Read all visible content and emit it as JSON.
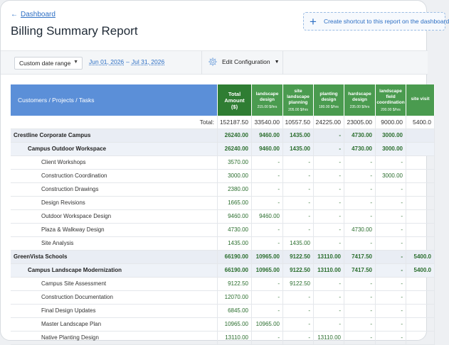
{
  "header": {
    "back_label": "Dashboard",
    "title": "Billing Summary Report",
    "shortcut_label": "Create shortcut to this report on the dashboard"
  },
  "toolbar": {
    "range_select": "Custom date range",
    "date_from": "Jun 01, 2026",
    "date_sep": "–",
    "date_to": "Jul 31, 2026",
    "edit_label": "Edit Configuration"
  },
  "table": {
    "first_header": "Customers / Projects / Tasks",
    "total_header": "Total Amount ($)",
    "activities": [
      {
        "name": "landscape design",
        "rate": "215.00 $/hrs"
      },
      {
        "name": "site landscape planning",
        "rate": "205.00 $/hrs"
      },
      {
        "name": "planting design",
        "rate": "180.00 $/hrs"
      },
      {
        "name": "hardscape design",
        "rate": "235.00 $/hrs"
      },
      {
        "name": "landscape field coordination",
        "rate": "200.00 $/hrs"
      },
      {
        "name": "site visit",
        "rate": ""
      }
    ],
    "total_row": {
      "label": "Total:",
      "total": "152187.50",
      "values": [
        "33540.00",
        "10557.50",
        "24225.00",
        "23005.00",
        "9000.00",
        "5400.0"
      ]
    },
    "rows": [
      {
        "kind": "client",
        "name": "Crestline Corporate Campus",
        "total": "26240.00",
        "values": [
          "9460.00",
          "1435.00",
          "-",
          "4730.00",
          "3000.00",
          ""
        ]
      },
      {
        "kind": "project",
        "name": "Campus Outdoor Workspace",
        "total": "26240.00",
        "values": [
          "9460.00",
          "1435.00",
          "-",
          "4730.00",
          "3000.00",
          ""
        ]
      },
      {
        "kind": "task",
        "name": "Client Workshops",
        "total": "3570.00",
        "values": [
          "-",
          "-",
          "-",
          "-",
          "-",
          ""
        ]
      },
      {
        "kind": "task",
        "name": "Construction Coordination",
        "total": "3000.00",
        "values": [
          "-",
          "-",
          "-",
          "-",
          "3000.00",
          ""
        ]
      },
      {
        "kind": "task",
        "name": "Construction Drawings",
        "total": "2380.00",
        "values": [
          "-",
          "-",
          "-",
          "-",
          "-",
          ""
        ]
      },
      {
        "kind": "task",
        "name": "Design Revisions",
        "total": "1665.00",
        "values": [
          "-",
          "-",
          "-",
          "-",
          "-",
          ""
        ]
      },
      {
        "kind": "task",
        "name": "Outdoor Workspace Design",
        "total": "9460.00",
        "values": [
          "9460.00",
          "-",
          "-",
          "-",
          "-",
          ""
        ]
      },
      {
        "kind": "task",
        "name": "Plaza & Walkway Design",
        "total": "4730.00",
        "values": [
          "-",
          "-",
          "-",
          "4730.00",
          "-",
          ""
        ]
      },
      {
        "kind": "task",
        "name": "Site Analysis",
        "total": "1435.00",
        "values": [
          "-",
          "1435.00",
          "-",
          "-",
          "-",
          ""
        ]
      },
      {
        "kind": "client",
        "name": "GreenVista Schools",
        "total": "66190.00",
        "values": [
          "10965.00",
          "9122.50",
          "13110.00",
          "7417.50",
          "-",
          "5400.0"
        ]
      },
      {
        "kind": "project",
        "name": "Campus Landscape Modernization",
        "total": "66190.00",
        "values": [
          "10965.00",
          "9122.50",
          "13110.00",
          "7417.50",
          "-",
          "5400.0"
        ]
      },
      {
        "kind": "task",
        "name": "Campus Site Assessment",
        "total": "9122.50",
        "values": [
          "-",
          "9122.50",
          "-",
          "-",
          "-",
          ""
        ]
      },
      {
        "kind": "task",
        "name": "Construction Documentation",
        "total": "12070.00",
        "values": [
          "-",
          "-",
          "-",
          "-",
          "-",
          ""
        ]
      },
      {
        "kind": "task",
        "name": "Final Design Updates",
        "total": "6845.00",
        "values": [
          "-",
          "-",
          "-",
          "-",
          "-",
          ""
        ]
      },
      {
        "kind": "task",
        "name": "Master Landscape Plan",
        "total": "10965.00",
        "values": [
          "10965.00",
          "-",
          "-",
          "-",
          "-",
          ""
        ]
      },
      {
        "kind": "task",
        "name": "Native Planting Design",
        "total": "13110.00",
        "values": [
          "-",
          "-",
          "13110.00",
          "-",
          "-",
          ""
        ]
      }
    ]
  },
  "colors": {
    "link": "#2d6fc4",
    "header_blue": "#5b8fd8",
    "header_green_dark": "#2f7d33",
    "header_green": "#4a9b4f",
    "value_green": "#2b6e2e"
  }
}
